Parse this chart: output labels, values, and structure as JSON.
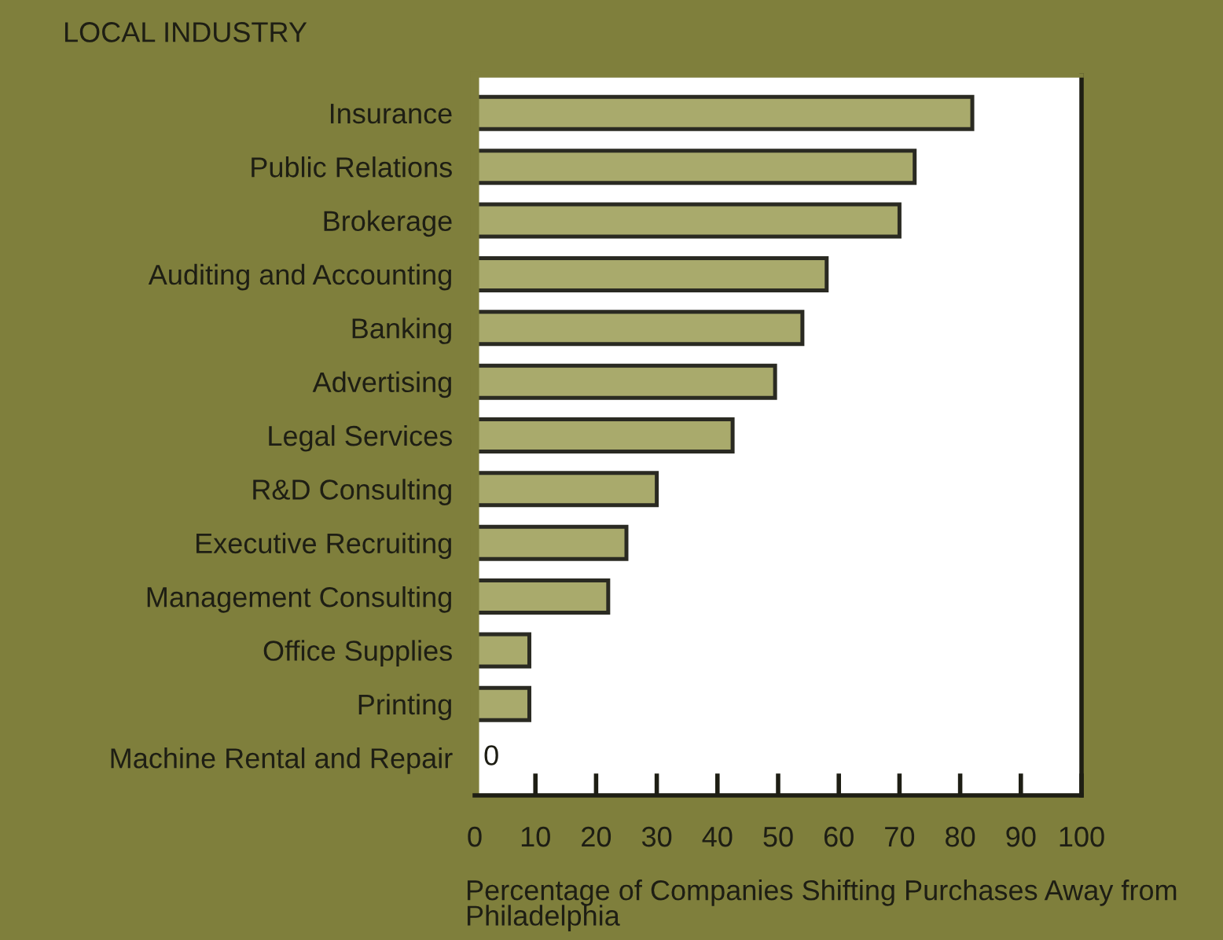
{
  "chart_data": {
    "type": "bar",
    "orientation": "horizontal",
    "title": "LOCAL INDUSTRY",
    "xlabel": "Percentage of Companies Shifting Purchases Away from Philadelphia",
    "categories": [
      "Insurance",
      "Public Relations",
      "Brokerage",
      "Auditing and Accounting",
      "Banking",
      "Advertising",
      "Legal Services",
      "R&D Consulting",
      "Executive Recruiting",
      "Management Consulting",
      "Office Supplies",
      "Printing",
      "Machine Rental and Repair"
    ],
    "values": [
      82,
      72.5,
      70,
      58,
      54,
      49.5,
      42.5,
      30,
      25,
      22,
      9,
      9,
      0
    ],
    "value_labels": [
      null,
      null,
      null,
      null,
      null,
      null,
      null,
      null,
      null,
      null,
      null,
      null,
      "0"
    ],
    "color": "#a9aa6c",
    "xlim": [
      0,
      100
    ],
    "xticks": [
      0,
      10,
      20,
      30,
      40,
      50,
      60,
      70,
      80,
      90,
      100
    ],
    "grid": false,
    "legend": false
  }
}
